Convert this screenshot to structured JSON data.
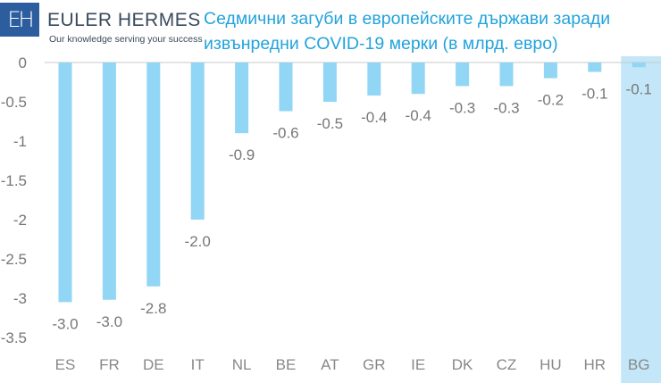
{
  "logo": {
    "mark": "EH",
    "name": "EULER HERMES",
    "tagline": "Our knowledge serving your success"
  },
  "title_lines": [
    "Седмични загуби в европейските държави заради",
    "извънредни COVID-19 мерки (в млрд. евро)"
  ],
  "colors": {
    "bar": "#92d6f5",
    "highlight": "#c3e7f8",
    "title": "#22a3dc",
    "logo": "#2c5d9e"
  },
  "chart_data": {
    "type": "bar",
    "title": "Седмични загуби в европейските държави заради извънредни COVID-19 мерки (в млрд. евро)",
    "xlabel": "",
    "ylabel": "",
    "categories": [
      "ES",
      "FR",
      "DE",
      "IT",
      "NL",
      "BE",
      "AT",
      "GR",
      "IE",
      "DK",
      "CZ",
      "HU",
      "HR",
      "BG"
    ],
    "values": [
      -3.05,
      -3.02,
      -2.85,
      -2.0,
      -0.9,
      -0.62,
      -0.5,
      -0.42,
      -0.4,
      -0.3,
      -0.3,
      -0.2,
      -0.12,
      -0.06
    ],
    "data_labels": [
      "-3.0",
      "-3.0",
      "-2.8",
      "-2.0",
      "-0.9",
      "-0.6",
      "-0.5",
      "-0.4",
      "-0.4",
      "-0.3",
      "-0.3",
      "-0.2",
      "-0.1",
      "-0.1"
    ],
    "yticks": [
      "0",
      "-0.5",
      "-1",
      "-1.5",
      "-2",
      "-2.5",
      "-3",
      "-3.5"
    ],
    "ylim": [
      -3.5,
      0
    ],
    "highlight_category": "BG",
    "grid": false
  }
}
